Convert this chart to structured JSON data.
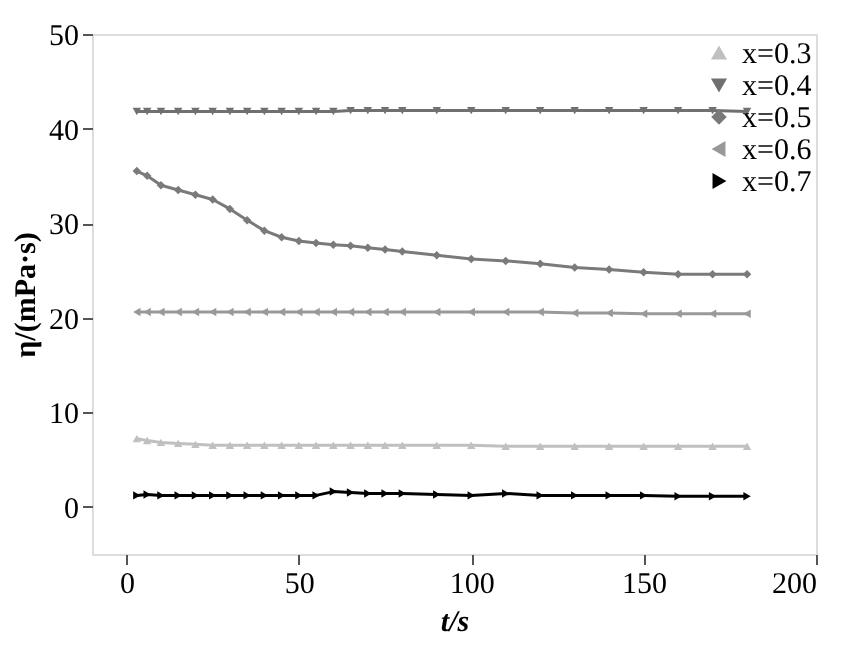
{
  "chart_data": {
    "type": "line",
    "xlabel": "t/s",
    "ylabel": "η/(mPa·s)",
    "x": [
      3,
      6,
      10,
      15,
      20,
      25,
      30,
      35,
      40,
      45,
      50,
      55,
      60,
      65,
      70,
      75,
      80,
      90,
      100,
      110,
      120,
      130,
      140,
      150,
      160,
      170,
      180
    ],
    "xlim": [
      -10,
      200
    ],
    "xticks": [
      0,
      50,
      100,
      150,
      200
    ],
    "ylim": [
      -5,
      50
    ],
    "yticks": [
      0,
      10,
      20,
      30,
      40,
      50
    ],
    "grid": false,
    "legend": "top right",
    "series": [
      {
        "name": "x=0.3",
        "color": "#c0c0c0",
        "marker": "triangle",
        "values": [
          7.2,
          7.0,
          6.8,
          6.7,
          6.6,
          6.5,
          6.5,
          6.5,
          6.5,
          6.5,
          6.5,
          6.5,
          6.5,
          6.5,
          6.5,
          6.5,
          6.5,
          6.5,
          6.5,
          6.4,
          6.4,
          6.4,
          6.4,
          6.4,
          6.4,
          6.4,
          6.4
        ]
      },
      {
        "name": "x=0.4",
        "color": "#707070",
        "marker": "triangle",
        "values": [
          41.8,
          41.8,
          41.8,
          41.8,
          41.8,
          41.8,
          41.8,
          41.8,
          41.8,
          41.8,
          41.8,
          41.8,
          41.8,
          41.9,
          41.9,
          41.9,
          41.9,
          41.9,
          41.9,
          41.9,
          41.9,
          41.9,
          41.9,
          41.9,
          41.9,
          41.9,
          41.8
        ]
      },
      {
        "name": "x=0.5",
        "color": "#7a7a7a",
        "marker": "diamond",
        "values": [
          35.5,
          35.0,
          34.0,
          33.5,
          33.0,
          32.5,
          31.5,
          30.3,
          29.2,
          28.5,
          28.1,
          27.9,
          27.7,
          27.6,
          27.4,
          27.2,
          27.0,
          26.6,
          26.2,
          26.0,
          25.7,
          25.3,
          25.1,
          24.8,
          24.6,
          24.6,
          24.6
        ]
      },
      {
        "name": "x=0.6",
        "color": "#999999",
        "marker": "triangle",
        "values": [
          20.6,
          20.6,
          20.6,
          20.6,
          20.6,
          20.6,
          20.6,
          20.6,
          20.6,
          20.6,
          20.6,
          20.6,
          20.6,
          20.6,
          20.6,
          20.6,
          20.6,
          20.6,
          20.6,
          20.6,
          20.6,
          20.5,
          20.5,
          20.4,
          20.4,
          20.4,
          20.4
        ]
      },
      {
        "name": "x=0.7",
        "color": "#000000",
        "marker": "triangle",
        "values": [
          1.2,
          1.3,
          1.2,
          1.2,
          1.2,
          1.2,
          1.2,
          1.2,
          1.2,
          1.2,
          1.2,
          1.2,
          1.6,
          1.5,
          1.4,
          1.4,
          1.4,
          1.3,
          1.2,
          1.4,
          1.2,
          1.2,
          1.2,
          1.2,
          1.1,
          1.1,
          1.1
        ]
      }
    ]
  }
}
